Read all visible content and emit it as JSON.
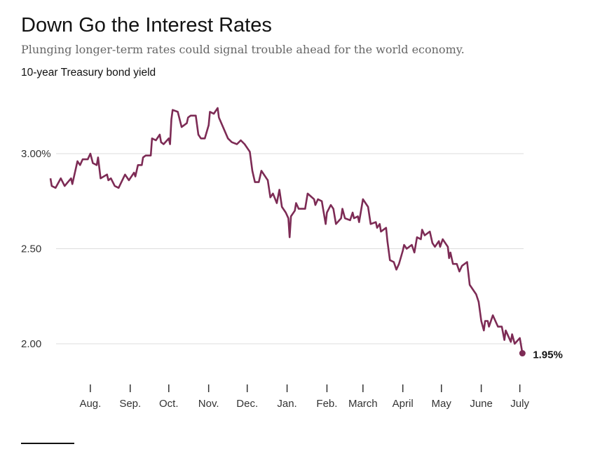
{
  "header": {
    "title": "Down Go the Interest Rates",
    "subtitle": "Plunging longer-term rates could signal trouble ahead for the world economy.",
    "chart_label": "10-year Treasury bond yield"
  },
  "chart_data": {
    "type": "line",
    "title": "Down Go the Interest Rates",
    "subtitle": "Plunging longer-term rates could signal trouble ahead for the world economy.",
    "ylabel": "10-year Treasury bond yield",
    "xlabel": "",
    "line_color": "#7d2b55",
    "grid": "horizontal",
    "ylim": [
      1.85,
      3.3
    ],
    "xlim": [
      "2018-07-01",
      "2019-07-05"
    ],
    "y_ticks": [
      {
        "value": 3.0,
        "label": "3.00%"
      },
      {
        "value": 2.5,
        "label": "2.50"
      },
      {
        "value": 2.0,
        "label": "2.00"
      }
    ],
    "x_ticks": [
      {
        "date": "2018-08-01",
        "label": "Aug."
      },
      {
        "date": "2018-09-01",
        "label": "Sep."
      },
      {
        "date": "2018-10-01",
        "label": "Oct."
      },
      {
        "date": "2018-11-01",
        "label": "Nov."
      },
      {
        "date": "2018-12-01",
        "label": "Dec."
      },
      {
        "date": "2019-01-01",
        "label": "Jan."
      },
      {
        "date": "2019-02-01",
        "label": "Feb."
      },
      {
        "date": "2019-03-01",
        "label": "March"
      },
      {
        "date": "2019-04-01",
        "label": "April"
      },
      {
        "date": "2019-05-01",
        "label": "May"
      },
      {
        "date": "2019-06-01",
        "label": "June"
      },
      {
        "date": "2019-07-01",
        "label": "July"
      }
    ],
    "end_label": "1.95%",
    "points": [
      [
        "2018-07-01",
        2.87
      ],
      [
        "2018-07-02",
        2.83
      ],
      [
        "2018-07-05",
        2.82
      ],
      [
        "2018-07-09",
        2.87
      ],
      [
        "2018-07-12",
        2.83
      ],
      [
        "2018-07-17",
        2.87
      ],
      [
        "2018-07-18",
        2.84
      ],
      [
        "2018-07-22",
        2.96
      ],
      [
        "2018-07-24",
        2.94
      ],
      [
        "2018-07-26",
        2.97
      ],
      [
        "2018-07-30",
        2.97
      ],
      [
        "2018-08-01",
        3.0
      ],
      [
        "2018-08-03",
        2.95
      ],
      [
        "2018-08-06",
        2.94
      ],
      [
        "2018-08-07",
        2.98
      ],
      [
        "2018-08-09",
        2.87
      ],
      [
        "2018-08-14",
        2.89
      ],
      [
        "2018-08-15",
        2.86
      ],
      [
        "2018-08-17",
        2.87
      ],
      [
        "2018-08-20",
        2.83
      ],
      [
        "2018-08-23",
        2.82
      ],
      [
        "2018-08-28",
        2.89
      ],
      [
        "2018-08-31",
        2.86
      ],
      [
        "2018-09-04",
        2.9
      ],
      [
        "2018-09-05",
        2.88
      ],
      [
        "2018-09-07",
        2.94
      ],
      [
        "2018-09-10",
        2.94
      ],
      [
        "2018-09-11",
        2.98
      ],
      [
        "2018-09-13",
        2.99
      ],
      [
        "2018-09-17",
        2.99
      ],
      [
        "2018-09-18",
        3.08
      ],
      [
        "2018-09-21",
        3.07
      ],
      [
        "2018-09-24",
        3.1
      ],
      [
        "2018-09-25",
        3.06
      ],
      [
        "2018-09-27",
        3.05
      ],
      [
        "2018-10-01",
        3.08
      ],
      [
        "2018-10-02",
        3.05
      ],
      [
        "2018-10-03",
        3.18
      ],
      [
        "2018-10-04",
        3.23
      ],
      [
        "2018-10-08",
        3.22
      ],
      [
        "2018-10-11",
        3.14
      ],
      [
        "2018-10-15",
        3.16
      ],
      [
        "2018-10-16",
        3.19
      ],
      [
        "2018-10-18",
        3.2
      ],
      [
        "2018-10-22",
        3.2
      ],
      [
        "2018-10-24",
        3.1
      ],
      [
        "2018-10-26",
        3.08
      ],
      [
        "2018-10-29",
        3.08
      ],
      [
        "2018-11-01",
        3.15
      ],
      [
        "2018-11-02",
        3.22
      ],
      [
        "2018-11-05",
        3.21
      ],
      [
        "2018-11-08",
        3.24
      ],
      [
        "2018-11-09",
        3.19
      ],
      [
        "2018-11-16",
        3.08
      ],
      [
        "2018-11-19",
        3.06
      ],
      [
        "2018-11-23",
        3.05
      ],
      [
        "2018-11-26",
        3.07
      ],
      [
        "2018-11-29",
        3.05
      ],
      [
        "2018-12-03",
        3.01
      ],
      [
        "2018-12-05",
        2.91
      ],
      [
        "2018-12-07",
        2.85
      ],
      [
        "2018-12-10",
        2.85
      ],
      [
        "2018-12-12",
        2.91
      ],
      [
        "2018-12-17",
        2.86
      ],
      [
        "2018-12-19",
        2.77
      ],
      [
        "2018-12-21",
        2.79
      ],
      [
        "2018-12-24",
        2.74
      ],
      [
        "2018-12-26",
        2.81
      ],
      [
        "2018-12-28",
        2.72
      ],
      [
        "2018-12-31",
        2.69
      ],
      [
        "2019-01-02",
        2.66
      ],
      [
        "2019-01-03",
        2.56
      ],
      [
        "2019-01-04",
        2.67
      ],
      [
        "2019-01-07",
        2.7
      ],
      [
        "2019-01-08",
        2.74
      ],
      [
        "2019-01-10",
        2.71
      ],
      [
        "2019-01-15",
        2.71
      ],
      [
        "2019-01-17",
        2.79
      ],
      [
        "2019-01-22",
        2.76
      ],
      [
        "2019-01-23",
        2.73
      ],
      [
        "2019-01-25",
        2.76
      ],
      [
        "2019-01-28",
        2.75
      ],
      [
        "2019-01-31",
        2.63
      ],
      [
        "2019-02-01",
        2.69
      ],
      [
        "2019-02-04",
        2.73
      ],
      [
        "2019-02-06",
        2.71
      ],
      [
        "2019-02-08",
        2.63
      ],
      [
        "2019-02-12",
        2.66
      ],
      [
        "2019-02-13",
        2.71
      ],
      [
        "2019-02-15",
        2.66
      ],
      [
        "2019-02-19",
        2.65
      ],
      [
        "2019-02-21",
        2.69
      ],
      [
        "2019-02-22",
        2.66
      ],
      [
        "2019-02-25",
        2.67
      ],
      [
        "2019-02-26",
        2.64
      ],
      [
        "2019-03-01",
        2.76
      ],
      [
        "2019-03-05",
        2.72
      ],
      [
        "2019-03-07",
        2.63
      ],
      [
        "2019-03-11",
        2.64
      ],
      [
        "2019-03-12",
        2.61
      ],
      [
        "2019-03-14",
        2.63
      ],
      [
        "2019-03-15",
        2.59
      ],
      [
        "2019-03-19",
        2.61
      ],
      [
        "2019-03-20",
        2.54
      ],
      [
        "2019-03-22",
        2.44
      ],
      [
        "2019-03-25",
        2.43
      ],
      [
        "2019-03-27",
        2.39
      ],
      [
        "2019-03-29",
        2.42
      ],
      [
        "2019-04-01",
        2.49
      ],
      [
        "2019-04-02",
        2.52
      ],
      [
        "2019-04-04",
        2.5
      ],
      [
        "2019-04-08",
        2.52
      ],
      [
        "2019-04-10",
        2.48
      ],
      [
        "2019-04-12",
        2.56
      ],
      [
        "2019-04-15",
        2.55
      ],
      [
        "2019-04-16",
        2.6
      ],
      [
        "2019-04-18",
        2.57
      ],
      [
        "2019-04-22",
        2.59
      ],
      [
        "2019-04-24",
        2.53
      ],
      [
        "2019-04-26",
        2.51
      ],
      [
        "2019-04-29",
        2.54
      ],
      [
        "2019-04-30",
        2.51
      ],
      [
        "2019-05-02",
        2.55
      ],
      [
        "2019-05-06",
        2.51
      ],
      [
        "2019-05-07",
        2.45
      ],
      [
        "2019-05-08",
        2.48
      ],
      [
        "2019-05-10",
        2.42
      ],
      [
        "2019-05-13",
        2.42
      ],
      [
        "2019-05-15",
        2.38
      ],
      [
        "2019-05-17",
        2.41
      ],
      [
        "2019-05-21",
        2.43
      ],
      [
        "2019-05-23",
        2.31
      ],
      [
        "2019-05-28",
        2.26
      ],
      [
        "2019-05-30",
        2.22
      ],
      [
        "2019-06-01",
        2.12
      ],
      [
        "2019-06-03",
        2.07
      ],
      [
        "2019-06-04",
        2.12
      ],
      [
        "2019-06-06",
        2.12
      ],
      [
        "2019-06-07",
        2.09
      ],
      [
        "2019-06-10",
        2.15
      ],
      [
        "2019-06-14",
        2.09
      ],
      [
        "2019-06-17",
        2.09
      ],
      [
        "2019-06-19",
        2.02
      ],
      [
        "2019-06-20",
        2.07
      ],
      [
        "2019-06-24",
        2.01
      ],
      [
        "2019-06-25",
        2.05
      ],
      [
        "2019-06-27",
        2.0
      ],
      [
        "2019-07-01",
        2.03
      ],
      [
        "2019-07-03",
        1.95
      ]
    ]
  }
}
